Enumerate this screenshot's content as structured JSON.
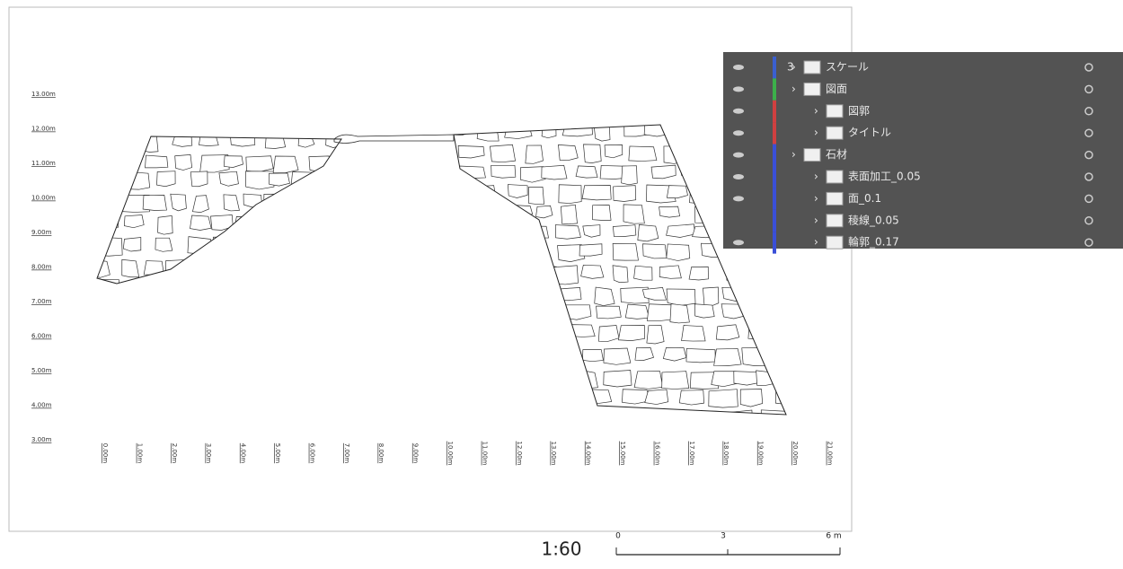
{
  "drawing": {
    "y_labels": [
      "13.00m",
      "12.00m",
      "11.00m",
      "10.00m",
      "9.00m",
      "8.00m",
      "7.00m",
      "6.00m",
      "5.00m",
      "4.00m",
      "3.00m"
    ],
    "x_labels": [
      "0.00m",
      "1.00m",
      "2.00m",
      "3.00m",
      "4.00m",
      "5.00m",
      "6.00m",
      "7.00m",
      "8.00m",
      "9.00m",
      "10.00m",
      "11.00m",
      "12.00m",
      "13.00m",
      "14.00m",
      "15.00m",
      "16.00m",
      "17.00m",
      "18.00m",
      "19.00m",
      "20.00m",
      "21.00m"
    ],
    "scale": "1:60",
    "scale_bar": [
      "0",
      "3",
      "6 m"
    ]
  },
  "layers": [
    {
      "number": "3",
      "name": "スケール"
    },
    {
      "name": "図面"
    },
    {
      "name": "図郭"
    },
    {
      "name": "タイトル"
    },
    {
      "name": "石材"
    },
    {
      "name": "表面加工_0.05"
    },
    {
      "name": "面_0.1"
    },
    {
      "name": "稜線_0.05"
    },
    {
      "name": "輪郭_0.17"
    }
  ]
}
